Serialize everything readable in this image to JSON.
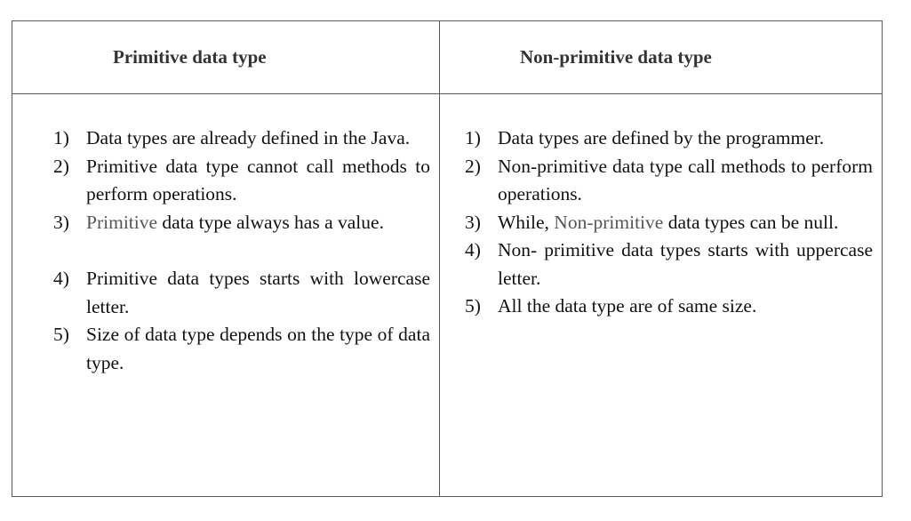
{
  "table": {
    "headers": {
      "left": "Primitive data type",
      "right": "Non-primitive data type"
    },
    "left_items": [
      {
        "num": "1)",
        "text": "Data types are already defined in the Java."
      },
      {
        "num": "2)",
        "text": "Primitive data type cannot call methods to perform operations."
      },
      {
        "num": "3)",
        "text_highlight": "Primitive",
        "text_rest": " data type always has a value."
      },
      {
        "num": "4)",
        "text": "Primitive data types starts with lowercase letter."
      },
      {
        "num": "5)",
        "text": "Size of data type depends on the type of data type."
      }
    ],
    "right_items": [
      {
        "num": "1)",
        "text": "Data types are defined by the programmer."
      },
      {
        "num": "2)",
        "text": "Non-primitive data type call methods to perform operations."
      },
      {
        "num": "3)",
        "text_before": "While, ",
        "text_highlight": "Non-primitive",
        "text_after": " data types can be null."
      },
      {
        "num": "4)",
        "text": "Non- primitive data types starts with uppercase letter."
      },
      {
        "num": "5)",
        "text": "All the data type are of same size."
      }
    ]
  }
}
